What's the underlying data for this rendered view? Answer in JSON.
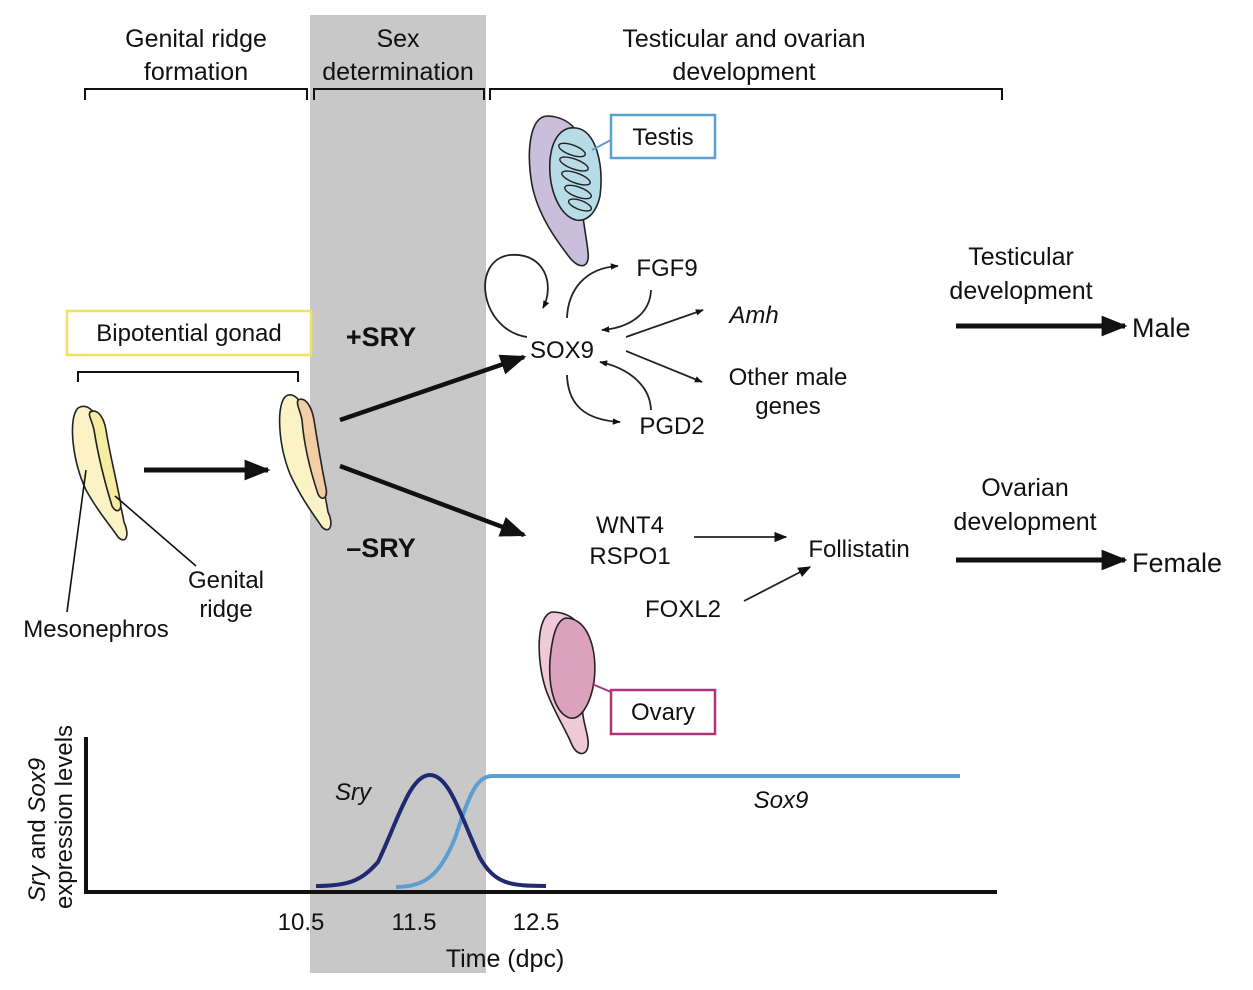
{
  "header": {
    "stage1_line1": "Genital ridge",
    "stage1_line2": "formation",
    "stage2_line1": "Sex",
    "stage2_line2": "determination",
    "stage3_line1": "Testicular and ovarian",
    "stage3_line2": "development"
  },
  "left": {
    "bipotential_gonad": "Bipotential gonad",
    "genital_ridge_line1": "Genital",
    "genital_ridge_line2": "ridge",
    "mesonephros": "Mesonephros"
  },
  "branch": {
    "plus_sry": "+SRY",
    "minus_sry": "–SRY"
  },
  "male_pathway": {
    "testis": "Testis",
    "fgf9": "FGF9",
    "sox9": "SOX9",
    "amh": "Amh",
    "other_male_line1": "Other male",
    "other_male_line2": "genes",
    "pgd2": "PGD2",
    "testicular_dev_line1": "Testicular",
    "testicular_dev_line2": "development",
    "male": "Male"
  },
  "female_pathway": {
    "wnt4": "WNT4",
    "rspo1": "RSPO1",
    "foxl2": "FOXL2",
    "follistatin": "Follistatin",
    "ovary": "Ovary",
    "ovarian_dev_line1": "Ovarian",
    "ovarian_dev_line2": "development",
    "female": "Female"
  },
  "plot": {
    "ylabel_line1_italic1": "Sry",
    "ylabel_line1_mid": " and ",
    "ylabel_line1_italic2": "Sox9",
    "ylabel_line2": "expression levels",
    "xlabel": "Time (dpc)",
    "tick_labels": [
      "10.5",
      "11.5",
      "12.5"
    ],
    "sry_label": "Sry",
    "sox9_label": "Sox9"
  },
  "colors": {
    "sex_determination_band": "#c8c8c8",
    "testis_box": "#5b9fd1",
    "ovary_box": "#b0327d",
    "bipotential_box": "#f0e35c",
    "sry_curve": "#202a73",
    "sox9_curve": "#5b9fd1",
    "gonad_cream": "#fbf3c6",
    "testis_purple": "#c9bfdc",
    "testis_blue": "#b7dce7",
    "ovary_pink": "#efc9d8",
    "ovary_dark_pink": "#dca1bd"
  }
}
